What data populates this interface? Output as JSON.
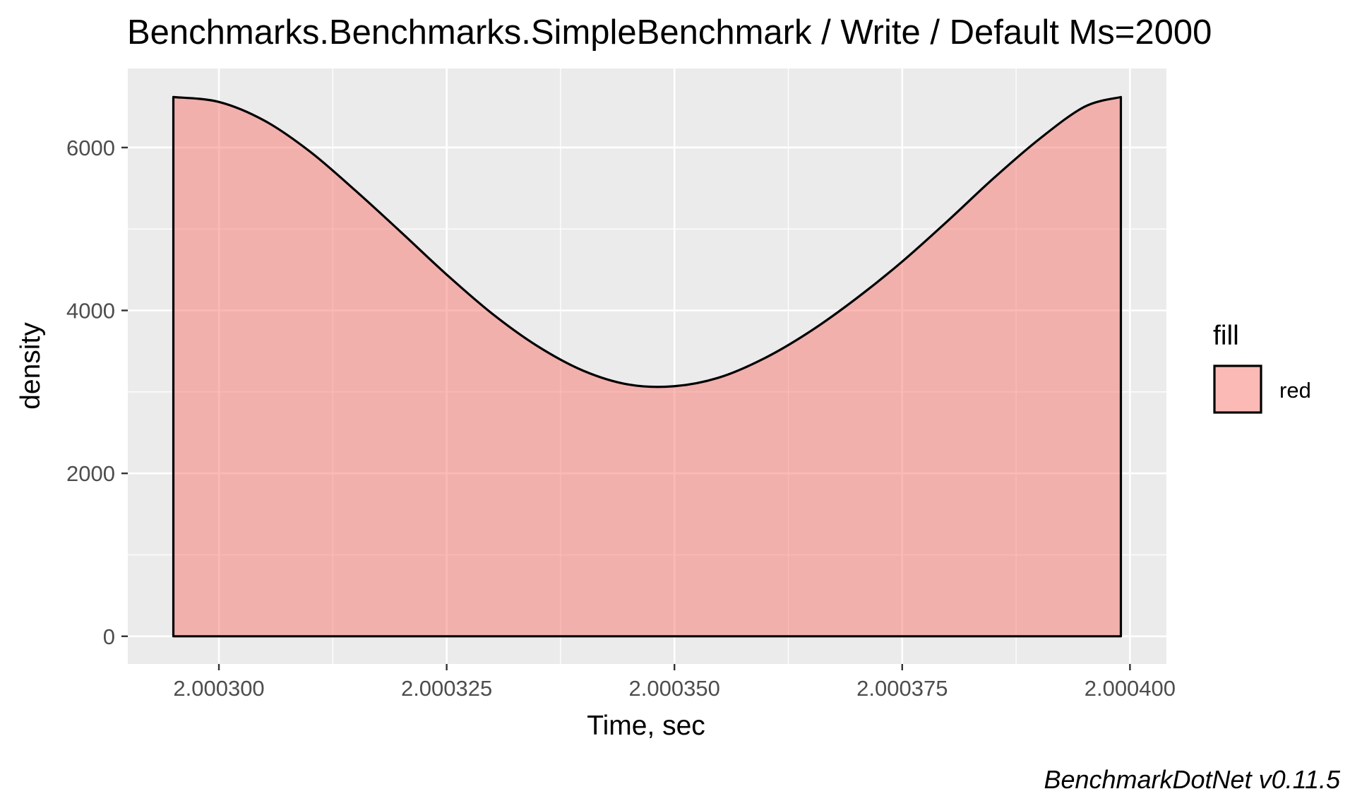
{
  "chart_data": {
    "type": "area",
    "title": "Benchmarks.Benchmarks.SimpleBenchmark / Write / Default Ms=2000",
    "xlabel": "Time, sec",
    "ylabel": "density",
    "caption": "BenchmarkDotNet v0.11.5",
    "xlim": [
      2.00029,
      2.000404
    ],
    "ylim": [
      -340,
      6970
    ],
    "x_ticks": [
      2.0003,
      2.000325,
      2.00035,
      2.000375,
      2.0004
    ],
    "x_tick_labels": [
      "2.000300",
      "2.000325",
      "2.000350",
      "2.000375",
      "2.000400"
    ],
    "x_minor_ticks": [
      2.0003125,
      2.0003375,
      2.0003625,
      2.0003875
    ],
    "y_ticks": [
      0,
      2000,
      4000,
      6000
    ],
    "y_tick_labels": [
      "0",
      "2000",
      "4000",
      "6000"
    ],
    "y_minor_ticks": [
      1000,
      3000,
      5000
    ],
    "grid": true,
    "legend": {
      "title": "fill",
      "position": "right",
      "entries": [
        {
          "label": "red",
          "color": "#F8766D"
        }
      ]
    },
    "series": [
      {
        "name": "red",
        "fill": "#F8766D",
        "fill_opacity": 0.5,
        "x": [
          2.000295,
          2.0003,
          2.000305,
          2.00031,
          2.000315,
          2.00032,
          2.000325,
          2.00033,
          2.000335,
          2.00034,
          2.000345,
          2.00035,
          2.000355,
          2.00036,
          2.000365,
          2.00037,
          2.000375,
          2.00038,
          2.000385,
          2.00039,
          2.000395,
          2.000399
        ],
        "y": [
          6620,
          6560,
          6330,
          5950,
          5470,
          4960,
          4440,
          3960,
          3560,
          3260,
          3090,
          3070,
          3180,
          3420,
          3750,
          4150,
          4600,
          5100,
          5620,
          6100,
          6500,
          6620
        ]
      }
    ]
  },
  "colors": {
    "panel": "#EBEBEB",
    "grid": "#FFFFFF",
    "fill": "#F8766D",
    "outline": "#000000"
  }
}
